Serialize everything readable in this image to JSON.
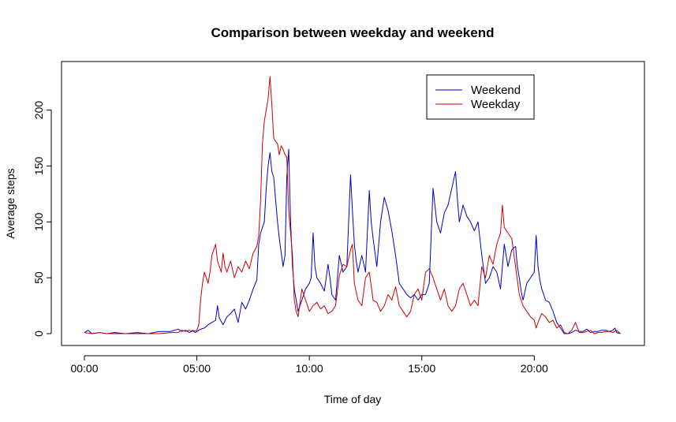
{
  "chart_data": {
    "type": "line",
    "title": "Comparison between weekday and weekend",
    "xlabel": "Time of day",
    "ylabel": "Average steps",
    "xlim": [
      0,
      1435
    ],
    "ylim": [
      0,
      230
    ],
    "x_ticks": [
      {
        "value": 0,
        "label": "00:00"
      },
      {
        "value": 300,
        "label": "05:00"
      },
      {
        "value": 600,
        "label": "10:00"
      },
      {
        "value": 900,
        "label": "15:00"
      },
      {
        "value": 1200,
        "label": "20:00"
      }
    ],
    "y_ticks": [
      0,
      50,
      100,
      150,
      200
    ],
    "legend_position": "top-right",
    "series": [
      {
        "name": "Weekend",
        "color": "#0000cd",
        "points": [
          [
            0,
            1
          ],
          [
            10,
            3
          ],
          [
            20,
            0
          ],
          [
            40,
            1
          ],
          [
            60,
            0
          ],
          [
            80,
            1
          ],
          [
            110,
            0
          ],
          [
            140,
            1
          ],
          [
            170,
            0
          ],
          [
            200,
            2
          ],
          [
            230,
            2
          ],
          [
            250,
            4
          ],
          [
            260,
            2
          ],
          [
            270,
            3
          ],
          [
            280,
            1
          ],
          [
            290,
            3
          ],
          [
            295,
            1
          ],
          [
            300,
            2
          ],
          [
            310,
            4
          ],
          [
            320,
            5
          ],
          [
            330,
            8
          ],
          [
            340,
            10
          ],
          [
            350,
            12
          ],
          [
            355,
            25
          ],
          [
            360,
            14
          ],
          [
            370,
            8
          ],
          [
            380,
            15
          ],
          [
            390,
            18
          ],
          [
            400,
            22
          ],
          [
            410,
            10
          ],
          [
            420,
            28
          ],
          [
            430,
            22
          ],
          [
            440,
            30
          ],
          [
            450,
            40
          ],
          [
            460,
            48
          ],
          [
            465,
            80
          ],
          [
            470,
            90
          ],
          [
            475,
            95
          ],
          [
            480,
            100
          ],
          [
            485,
            130
          ],
          [
            490,
            150
          ],
          [
            495,
            162
          ],
          [
            500,
            145
          ],
          [
            505,
            140
          ],
          [
            510,
            120
          ],
          [
            515,
            100
          ],
          [
            520,
            85
          ],
          [
            530,
            60
          ],
          [
            535,
            70
          ],
          [
            540,
            140
          ],
          [
            545,
            165
          ],
          [
            550,
            100
          ],
          [
            555,
            60
          ],
          [
            560,
            40
          ],
          [
            565,
            30
          ],
          [
            570,
            20
          ],
          [
            580,
            30
          ],
          [
            590,
            40
          ],
          [
            600,
            45
          ],
          [
            605,
            50
          ],
          [
            610,
            90
          ],
          [
            615,
            60
          ],
          [
            620,
            50
          ],
          [
            630,
            45
          ],
          [
            640,
            38
          ],
          [
            650,
            62
          ],
          [
            655,
            50
          ],
          [
            660,
            35
          ],
          [
            670,
            30
          ],
          [
            680,
            70
          ],
          [
            690,
            55
          ],
          [
            700,
            60
          ],
          [
            710,
            142
          ],
          [
            715,
            110
          ],
          [
            720,
            80
          ],
          [
            725,
            65
          ],
          [
            730,
            55
          ],
          [
            740,
            70
          ],
          [
            750,
            55
          ],
          [
            760,
            128
          ],
          [
            765,
            100
          ],
          [
            770,
            85
          ],
          [
            780,
            60
          ],
          [
            790,
            100
          ],
          [
            800,
            122
          ],
          [
            810,
            110
          ],
          [
            820,
            92
          ],
          [
            830,
            70
          ],
          [
            840,
            45
          ],
          [
            850,
            40
          ],
          [
            860,
            35
          ],
          [
            870,
            32
          ],
          [
            880,
            35
          ],
          [
            890,
            30
          ],
          [
            900,
            35
          ],
          [
            910,
            35
          ],
          [
            920,
            45
          ],
          [
            930,
            130
          ],
          [
            940,
            100
          ],
          [
            950,
            90
          ],
          [
            960,
            108
          ],
          [
            970,
            115
          ],
          [
            980,
            130
          ],
          [
            990,
            145
          ],
          [
            995,
            120
          ],
          [
            1000,
            100
          ],
          [
            1010,
            115
          ],
          [
            1020,
            105
          ],
          [
            1030,
            100
          ],
          [
            1040,
            92
          ],
          [
            1050,
            100
          ],
          [
            1060,
            70
          ],
          [
            1070,
            45
          ],
          [
            1080,
            50
          ],
          [
            1090,
            60
          ],
          [
            1100,
            55
          ],
          [
            1110,
            40
          ],
          [
            1120,
            80
          ],
          [
            1130,
            60
          ],
          [
            1140,
            75
          ],
          [
            1150,
            78
          ],
          [
            1155,
            60
          ],
          [
            1160,
            50
          ],
          [
            1165,
            38
          ],
          [
            1170,
            30
          ],
          [
            1180,
            45
          ],
          [
            1190,
            50
          ],
          [
            1200,
            55
          ],
          [
            1205,
            88
          ],
          [
            1210,
            60
          ],
          [
            1215,
            48
          ],
          [
            1220,
            40
          ],
          [
            1225,
            35
          ],
          [
            1230,
            30
          ],
          [
            1240,
            28
          ],
          [
            1250,
            20
          ],
          [
            1260,
            10
          ],
          [
            1270,
            5
          ],
          [
            1280,
            0
          ],
          [
            1290,
            0
          ],
          [
            1300,
            1
          ],
          [
            1310,
            3
          ],
          [
            1320,
            2
          ],
          [
            1330,
            2
          ],
          [
            1340,
            4
          ],
          [
            1350,
            1
          ],
          [
            1360,
            2
          ],
          [
            1370,
            2
          ],
          [
            1380,
            3
          ],
          [
            1390,
            3
          ],
          [
            1400,
            2
          ],
          [
            1410,
            3
          ],
          [
            1415,
            5
          ],
          [
            1420,
            1
          ],
          [
            1430,
            0
          ]
        ]
      },
      {
        "name": "Weekday",
        "color": "#cd0000",
        "points": [
          [
            0,
            1
          ],
          [
            20,
            0
          ],
          [
            40,
            1
          ],
          [
            60,
            0
          ],
          [
            100,
            0
          ],
          [
            140,
            0
          ],
          [
            180,
            0
          ],
          [
            200,
            0
          ],
          [
            230,
            1
          ],
          [
            250,
            1
          ],
          [
            260,
            3
          ],
          [
            270,
            2
          ],
          [
            280,
            3
          ],
          [
            290,
            2
          ],
          [
            300,
            3
          ],
          [
            305,
            8
          ],
          [
            310,
            30
          ],
          [
            315,
            45
          ],
          [
            320,
            55
          ],
          [
            325,
            50
          ],
          [
            330,
            45
          ],
          [
            335,
            55
          ],
          [
            340,
            70
          ],
          [
            345,
            75
          ],
          [
            350,
            80
          ],
          [
            355,
            65
          ],
          [
            360,
            60
          ],
          [
            365,
            55
          ],
          [
            370,
            72
          ],
          [
            375,
            60
          ],
          [
            380,
            55
          ],
          [
            390,
            65
          ],
          [
            400,
            50
          ],
          [
            410,
            60
          ],
          [
            420,
            55
          ],
          [
            430,
            65
          ],
          [
            440,
            58
          ],
          [
            450,
            72
          ],
          [
            460,
            78
          ],
          [
            465,
            88
          ],
          [
            470,
            120
          ],
          [
            475,
            170
          ],
          [
            480,
            190
          ],
          [
            485,
            200
          ],
          [
            490,
            210
          ],
          [
            495,
            230
          ],
          [
            500,
            205
          ],
          [
            505,
            175
          ],
          [
            510,
            172
          ],
          [
            515,
            170
          ],
          [
            520,
            160
          ],
          [
            525,
            168
          ],
          [
            530,
            165
          ],
          [
            535,
            160
          ],
          [
            540,
            158
          ],
          [
            545,
            110
          ],
          [
            550,
            90
          ],
          [
            555,
            70
          ],
          [
            560,
            30
          ],
          [
            565,
            20
          ],
          [
            570,
            15
          ],
          [
            580,
            40
          ],
          [
            590,
            30
          ],
          [
            600,
            20
          ],
          [
            610,
            25
          ],
          [
            620,
            28
          ],
          [
            630,
            22
          ],
          [
            640,
            25
          ],
          [
            650,
            18
          ],
          [
            660,
            20
          ],
          [
            670,
            25
          ],
          [
            680,
            52
          ],
          [
            690,
            62
          ],
          [
            700,
            60
          ],
          [
            710,
            75
          ],
          [
            715,
            80
          ],
          [
            720,
            45
          ],
          [
            730,
            30
          ],
          [
            740,
            25
          ],
          [
            750,
            50
          ],
          [
            760,
            55
          ],
          [
            770,
            30
          ],
          [
            780,
            28
          ],
          [
            790,
            20
          ],
          [
            800,
            25
          ],
          [
            810,
            35
          ],
          [
            820,
            30
          ],
          [
            830,
            42
          ],
          [
            840,
            25
          ],
          [
            850,
            20
          ],
          [
            860,
            15
          ],
          [
            870,
            20
          ],
          [
            880,
            35
          ],
          [
            890,
            40
          ],
          [
            900,
            30
          ],
          [
            910,
            55
          ],
          [
            920,
            58
          ],
          [
            930,
            50
          ],
          [
            940,
            40
          ],
          [
            950,
            30
          ],
          [
            960,
            40
          ],
          [
            970,
            25
          ],
          [
            980,
            20
          ],
          [
            990,
            25
          ],
          [
            1000,
            40
          ],
          [
            1010,
            45
          ],
          [
            1020,
            35
          ],
          [
            1030,
            25
          ],
          [
            1040,
            30
          ],
          [
            1050,
            25
          ],
          [
            1060,
            60
          ],
          [
            1070,
            50
          ],
          [
            1080,
            70
          ],
          [
            1090,
            62
          ],
          [
            1100,
            80
          ],
          [
            1110,
            90
          ],
          [
            1115,
            115
          ],
          [
            1120,
            95
          ],
          [
            1130,
            90
          ],
          [
            1140,
            85
          ],
          [
            1150,
            60
          ],
          [
            1160,
            35
          ],
          [
            1170,
            25
          ],
          [
            1180,
            20
          ],
          [
            1190,
            15
          ],
          [
            1200,
            12
          ],
          [
            1205,
            5
          ],
          [
            1210,
            10
          ],
          [
            1220,
            18
          ],
          [
            1230,
            15
          ],
          [
            1240,
            10
          ],
          [
            1250,
            12
          ],
          [
            1260,
            5
          ],
          [
            1270,
            8
          ],
          [
            1280,
            1
          ],
          [
            1290,
            0
          ],
          [
            1300,
            3
          ],
          [
            1310,
            10
          ],
          [
            1320,
            1
          ],
          [
            1330,
            1
          ],
          [
            1340,
            2
          ],
          [
            1350,
            3
          ],
          [
            1360,
            0
          ],
          [
            1370,
            1
          ],
          [
            1380,
            1
          ],
          [
            1390,
            2
          ],
          [
            1400,
            2
          ],
          [
            1410,
            1
          ],
          [
            1420,
            3
          ],
          [
            1430,
            0
          ]
        ]
      }
    ]
  }
}
